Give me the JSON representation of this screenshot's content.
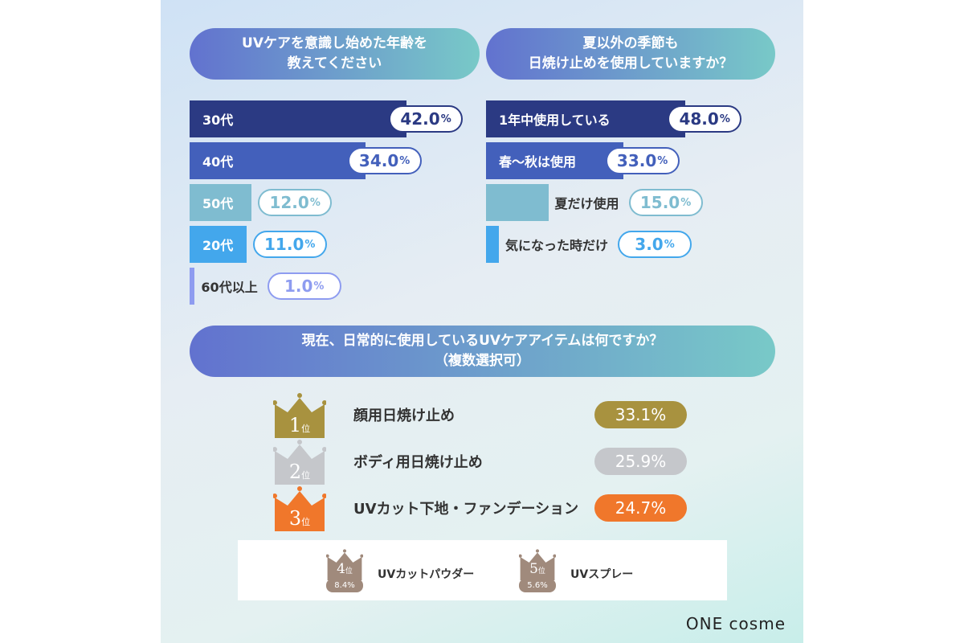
{
  "age": {
    "title": [
      "UVケアを意識し始めた年齢を",
      "教えてください"
    ],
    "items": [
      {
        "label": "30代",
        "value": 42.0,
        "color": "#2b3a83"
      },
      {
        "label": "40代",
        "value": 34.0,
        "color": "#4360bb"
      },
      {
        "label": "50代",
        "value": 12.0,
        "color": "#7fbcd0"
      },
      {
        "label": "20代",
        "value": 11.0,
        "color": "#43a7ec"
      },
      {
        "label": "60代以上",
        "value": 1.0,
        "color": "#8e9cf0"
      }
    ]
  },
  "season": {
    "title": [
      "夏以外の季節も",
      "日焼け止めを使用していますか？"
    ],
    "items": [
      {
        "label": "1年中使用している",
        "value": 48.0,
        "color": "#2b3a83"
      },
      {
        "label": "春〜秋は使用",
        "value": 33.0,
        "color": "#4360bb"
      },
      {
        "label": "夏だけ使用",
        "value": 15.0,
        "color": "#7fbcd0"
      },
      {
        "label": "気になった時だけ",
        "value": 3.0,
        "color": "#43a7ec"
      }
    ]
  },
  "items": {
    "title": [
      "現在、日常的に使用しているUVケアアイテムは何ですか？",
      "（複数選択可）"
    ],
    "rank_suffix": "位",
    "top": [
      {
        "rank": "1",
        "label": "顔用日焼け止め",
        "value": "33.1%",
        "color": "#a8923f"
      },
      {
        "rank": "2",
        "label": "ボディ用日焼け止め",
        "value": "25.9%",
        "color": "#c5c7cb"
      },
      {
        "rank": "3",
        "label": "UVカット下地・ファンデーション",
        "value": "24.7%",
        "color": "#f0772b"
      }
    ],
    "minor": [
      {
        "rank": "4",
        "label": "UVカットパウダー",
        "value": "8.4%",
        "color": "#a08a7c"
      },
      {
        "rank": "5",
        "label": "UVスプレー",
        "value": "5.6%",
        "color": "#a08a7c"
      }
    ]
  },
  "logo": "ONE cosme",
  "chart_data": [
    {
      "type": "bar",
      "title": "UVケアを意識し始めた年齢を教えてください",
      "categories": [
        "30代",
        "40代",
        "50代",
        "20代",
        "60代以上"
      ],
      "values": [
        42.0,
        34.0,
        12.0,
        11.0,
        1.0
      ],
      "unit": "%"
    },
    {
      "type": "bar",
      "title": "夏以外の季節も日焼け止めを使用していますか？",
      "categories": [
        "1年中使用している",
        "春〜秋は使用",
        "夏だけ使用",
        "気になった時だけ"
      ],
      "values": [
        48.0,
        33.0,
        15.0,
        3.0
      ],
      "unit": "%"
    },
    {
      "type": "table",
      "title": "現在、日常的に使用しているUVケアアイテムは何ですか？（複数選択可）",
      "categories": [
        "顔用日焼け止め",
        "ボディ用日焼け止め",
        "UVカット下地・ファンデーション",
        "UVカットパウダー",
        "UVスプレー"
      ],
      "values": [
        33.1,
        25.9,
        24.7,
        8.4,
        5.6
      ],
      "unit": "%"
    }
  ]
}
